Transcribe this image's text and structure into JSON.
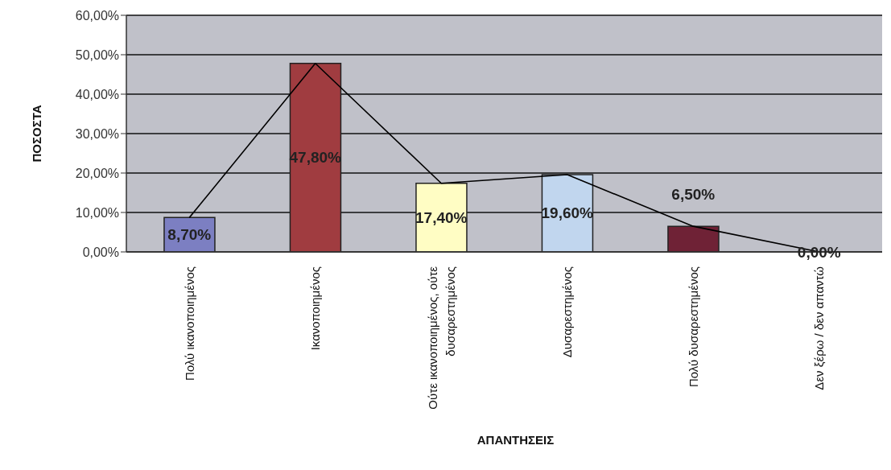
{
  "chart_data": {
    "type": "bar",
    "xlabel": "ΑΠΑΝΤΗΣΕΙΣ",
    "ylabel": "ΠΟΣΟΣΤΑ",
    "categories": [
      "Πολύ ικανοποιημένος",
      "Ικανοποιημένος",
      "Ούτε ικανοποιημένος,  ούτε δυσαρεστημένος",
      "Δυσαρεστημένος",
      "Πολύ δυσαρεστημένος",
      "Δεν ξέρω / δεν απαντώ"
    ],
    "series": [
      {
        "colors": [
          "#7c7fc2",
          "#a03c40",
          "#fffdc4",
          "#c1d6ee",
          "#6f2236",
          "#ccffff"
        ],
        "values": [
          8.7,
          47.8,
          17.4,
          19.6,
          6.5,
          0
        ],
        "value_labels": [
          "8,70%",
          "47,80%",
          "17,40%",
          "19,60%",
          "6,50%",
          "0,00%"
        ]
      },
      {
        "type": "line",
        "color": "#000000",
        "values": [
          8.7,
          47.8,
          17.4,
          19.6,
          6.5,
          0
        ]
      }
    ],
    "ylim": [
      0,
      60
    ],
    "yticks": [
      {
        "value": 0,
        "label": "0,00%"
      },
      {
        "value": 10,
        "label": "10,00%"
      },
      {
        "value": 20,
        "label": "20,00%"
      },
      {
        "value": 30,
        "label": "30,00%"
      },
      {
        "value": 40,
        "label": "40,00%"
      },
      {
        "value": 50,
        "label": "50,00%"
      },
      {
        "value": 60,
        "label": "60,00%"
      }
    ],
    "grid": "y",
    "marker": "none"
  }
}
